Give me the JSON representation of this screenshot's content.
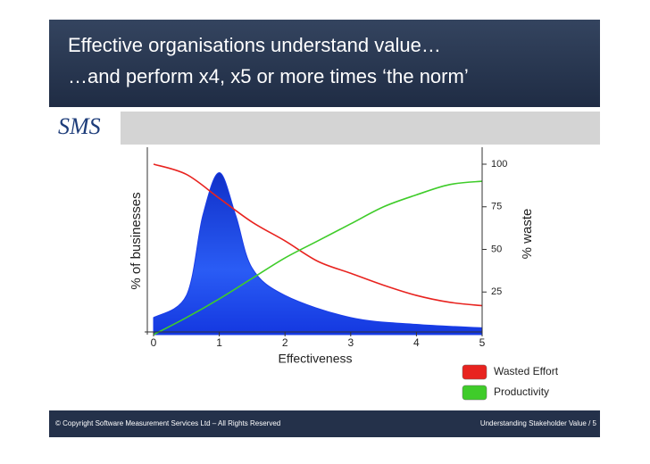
{
  "header": {
    "title_lines": [
      "Effective organisations understand value…",
      "…and perform x4, x5 or more times ‘the norm’"
    ]
  },
  "logo": "SMS",
  "chart_data": {
    "type": "line",
    "xlabel": "Effectiveness",
    "ylabel": "% of businesses",
    "y2label": "% waste",
    "xlim": [
      0,
      5
    ],
    "xticks": [
      0,
      1,
      2,
      3,
      4,
      5
    ],
    "ylim": [
      0,
      100
    ],
    "y2lim": [
      0,
      100
    ],
    "y2ticks": [
      25,
      50,
      75,
      100
    ],
    "series": [
      {
        "kind": "area",
        "color": "#1a3ce8",
        "x": [
          0,
          0.5,
          0.75,
          1,
          1.25,
          1.5,
          2,
          3,
          4,
          5
        ],
        "values": [
          10,
          23,
          70,
          95,
          70,
          39,
          23,
          10,
          6,
          4
        ]
      },
      {
        "name": "Wasted Effort",
        "axis": "y2",
        "color": "#e8231f",
        "x": [
          0,
          0.5,
          1,
          1.5,
          2,
          2.5,
          3,
          3.5,
          4,
          4.5,
          5
        ],
        "values": [
          100,
          94,
          80,
          66,
          55,
          43,
          36,
          29,
          23,
          19,
          17
        ]
      },
      {
        "name": "Productivity",
        "axis": "y2",
        "color": "#3fcc2a",
        "x": [
          0,
          0.5,
          1,
          1.5,
          2,
          2.5,
          3,
          3.5,
          4,
          4.5,
          5
        ],
        "values": [
          0,
          10,
          21,
          33,
          45,
          55,
          65,
          75,
          82,
          88,
          90
        ]
      }
    ]
  },
  "footer": {
    "left": "© Copyright Software Measurement Services Ltd – All Rights Reserved",
    "right": "Understanding Stakeholder Value / 5"
  }
}
